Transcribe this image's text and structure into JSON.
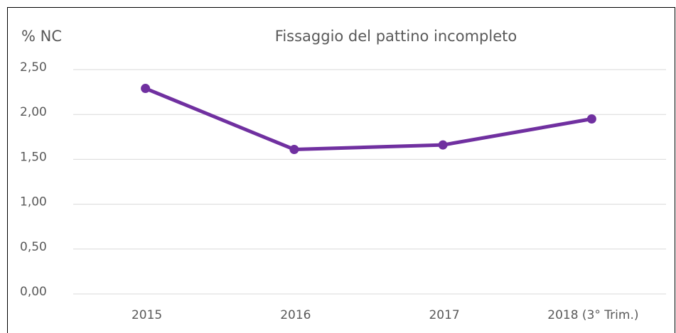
{
  "chart_data": {
    "type": "line",
    "title": "Fissaggio del pattino incompleto",
    "y_label": "% NC",
    "categories": [
      "2015",
      "2016",
      "2017",
      "2018 (3° Trim.)"
    ],
    "series": [
      {
        "name": "% NC",
        "color": "#7030a0",
        "values": [
          2.29,
          1.61,
          1.66,
          1.95
        ]
      }
    ],
    "ylim": [
      0,
      2.5
    ],
    "yticks": [
      {
        "value": 0,
        "label": "0,00"
      },
      {
        "value": 0.5,
        "label": "0,50"
      },
      {
        "value": 1,
        "label": "1,00"
      },
      {
        "value": 1.5,
        "label": "1,50"
      },
      {
        "value": 2,
        "label": "2,00"
      },
      {
        "value": 2.5,
        "label": "2,50"
      }
    ],
    "grid": true
  }
}
